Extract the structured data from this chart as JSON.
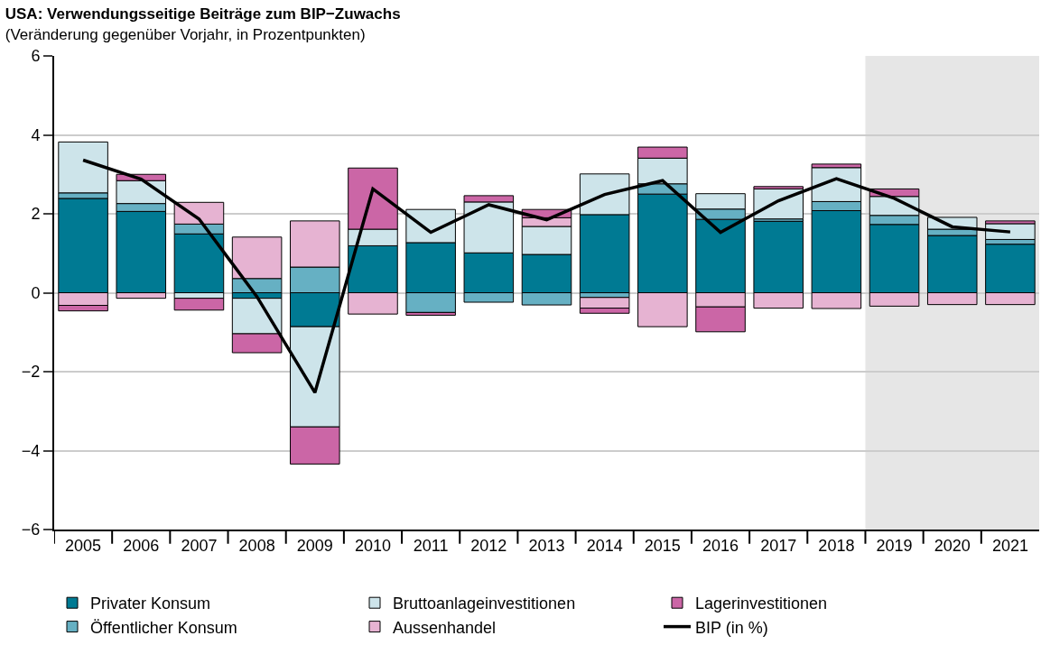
{
  "chart_data": {
    "type": "bar",
    "title": "USA: Verwendungsseitige Beiträge zum BIP−Zuwachs",
    "subtitle": "(Veränderung gegenüber Vorjahr, in Prozentpunkten)",
    "categories": [
      "2005",
      "2006",
      "2007",
      "2008",
      "2009",
      "2010",
      "2011",
      "2012",
      "2013",
      "2014",
      "2015",
      "2016",
      "2017",
      "2018",
      "2019",
      "2020",
      "2021"
    ],
    "stacked": true,
    "ylim": [
      -6,
      6
    ],
    "yticks": [
      {
        "value": -6,
        "label": "−6"
      },
      {
        "value": -4,
        "label": "−4"
      },
      {
        "value": -2,
        "label": "−2"
      },
      0,
      2,
      4,
      6
    ],
    "grid": "y",
    "legend": "bottom",
    "bands": [
      {
        "axis": "x",
        "from": "2019",
        "to": "2021",
        "color": "#e6e6e6"
      }
    ],
    "series": [
      {
        "name": "Privater Konsum",
        "color": "#007a93",
        "values": [
          2.39,
          2.06,
          1.49,
          -0.14,
          -0.86,
          1.19,
          1.27,
          1.01,
          0.97,
          1.98,
          2.5,
          1.86,
          1.81,
          2.08,
          1.73,
          1.45,
          1.23
        ]
      },
      {
        "name": "Öffentlicher Konsum",
        "color": "#66b0c3",
        "values": [
          0.14,
          0.2,
          0.25,
          0.36,
          0.65,
          null,
          -0.5,
          -0.24,
          -0.31,
          -0.12,
          0.26,
          0.26,
          0.06,
          0.23,
          0.23,
          0.16,
          0.12
        ]
      },
      {
        "name": "Bruttoanlageinvestitionen",
        "color": "#cde4ea",
        "values": [
          1.29,
          0.58,
          -0.14,
          -0.9,
          -2.54,
          0.42,
          0.84,
          1.29,
          0.71,
          1.03,
          0.65,
          0.39,
          0.76,
          0.86,
          0.48,
          0.3,
          0.4
        ]
      },
      {
        "name": "Aussenhandel",
        "color": "#e6b3d2",
        "values": [
          -0.32,
          -0.14,
          0.55,
          1.05,
          1.17,
          -0.54,
          null,
          null,
          0.22,
          -0.27,
          -0.86,
          -0.36,
          -0.39,
          -0.4,
          -0.34,
          -0.3,
          -0.3
        ]
      },
      {
        "name": "Lagerinvestitionen",
        "color": "#cb66a6",
        "values": [
          -0.14,
          0.16,
          -0.3,
          -0.48,
          -0.94,
          1.55,
          -0.07,
          0.16,
          0.21,
          -0.13,
          0.28,
          -0.63,
          0.06,
          0.09,
          0.19,
          null,
          0.07
        ]
      },
      {
        "name": "BIP (in %)",
        "type": "line",
        "color": "#000000",
        "values": [
          3.36,
          2.88,
          1.87,
          -0.1,
          -2.53,
          2.63,
          1.53,
          2.23,
          1.85,
          2.49,
          2.84,
          1.53,
          2.33,
          2.89,
          2.39,
          1.67,
          1.54
        ]
      }
    ]
  }
}
